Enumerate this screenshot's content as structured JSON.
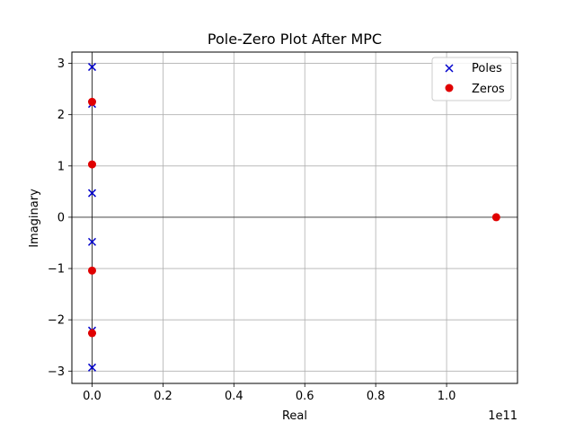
{
  "chart_data": {
    "type": "scatter",
    "title": "Pole-Zero Plot After MPC",
    "xlabel": "Real",
    "ylabel": "Imaginary",
    "x_offset_label": "1e11",
    "x_scale": 100000000000,
    "xlim": [
      -0.057,
      1.2
    ],
    "ylim": [
      -3.24,
      3.22
    ],
    "x_ticks": [
      0.0,
      0.2,
      0.4,
      0.6,
      0.8,
      1.0
    ],
    "x_tick_labels": [
      "0.0",
      "0.2",
      "0.4",
      "0.6",
      "0.8",
      "1.0"
    ],
    "y_ticks": [
      -3,
      -2,
      -1,
      0,
      1,
      2,
      3
    ],
    "y_tick_labels": [
      "−3",
      "−2",
      "−1",
      "0",
      "1",
      "2",
      "3"
    ],
    "grid": true,
    "legend_position": "top-right",
    "series": [
      {
        "name": "Poles",
        "marker": "x",
        "color": "#0000cc",
        "points": [
          {
            "x": 0,
            "y": 2.93
          },
          {
            "x": 0,
            "y": 2.21
          },
          {
            "x": 0,
            "y": 0.47
          },
          {
            "x": 0,
            "y": -0.48
          },
          {
            "x": 0,
            "y": -2.21
          },
          {
            "x": 0,
            "y": -2.93
          }
        ]
      },
      {
        "name": "Zeros",
        "marker": "o",
        "color": "#e00000",
        "points": [
          {
            "x": 0,
            "y": 2.25
          },
          {
            "x": 0,
            "y": 1.03
          },
          {
            "x": 0,
            "y": -1.04
          },
          {
            "x": 0,
            "y": -2.26
          },
          {
            "x": 1.14,
            "y": 0.0
          }
        ]
      }
    ]
  }
}
